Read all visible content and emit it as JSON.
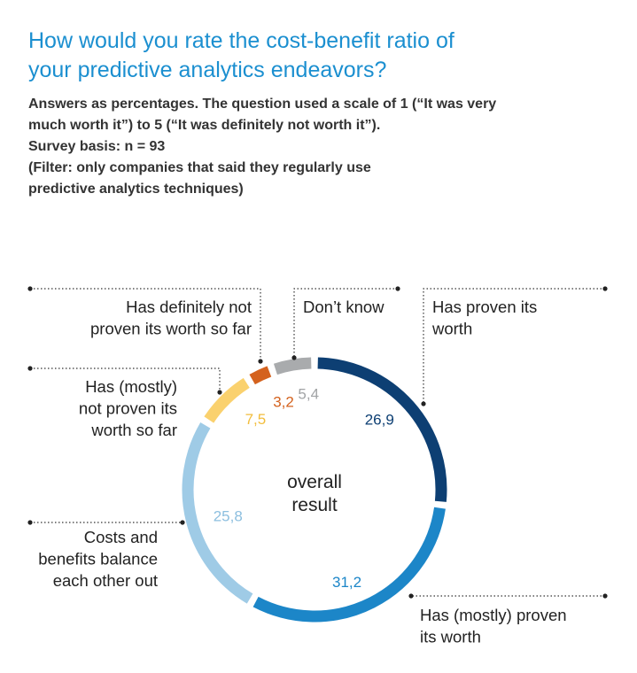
{
  "header": {
    "title_lines": [
      "How would you rate the cost-benefit ratio of",
      "your predictive analytics endeavors?"
    ],
    "subtitle_lines": [
      "Answers as percentages. The question used a scale of 1 (“It was very",
      "much worth it”) to 5 (“It was definitely not worth it”).",
      "Survey basis: n = 93",
      "(Filter: only companies that said they regularly use",
      "predictive analytics techniques)"
    ]
  },
  "chart_data": {
    "type": "pie",
    "style": "donut-ring",
    "center_label": [
      "overall",
      "result"
    ],
    "series": [
      {
        "label": [
          "Has proven its",
          "worth"
        ],
        "value": 26.9,
        "value_label": "26,9",
        "color": "#0d3f73",
        "label_color": "#0d3f73"
      },
      {
        "label": [
          "Has (mostly) proven",
          "its worth"
        ],
        "value": 31.2,
        "value_label": "31,2",
        "color": "#1c86c8",
        "label_color": "#1c86c8"
      },
      {
        "label": [
          "Costs and",
          "benefits balance",
          "each other out"
        ],
        "value": 25.8,
        "value_label": "25,8",
        "color": "#9fcbe6",
        "label_color": "#8dbfdf"
      },
      {
        "label": [
          "Has (mostly)",
          "not proven its",
          "worth so far"
        ],
        "value": 7.5,
        "value_label": "7,5",
        "color": "#fad16e",
        "label_color": "#f2bd3c"
      },
      {
        "label": [
          "Has definitely not",
          "proven its worth so far"
        ],
        "value": 3.2,
        "value_label": "3,2",
        "color": "#d4621e",
        "label_color": "#d4621e"
      },
      {
        "label": [
          "Don’t know"
        ],
        "value": 5.4,
        "value_label": "5,4",
        "color": "#a9abad",
        "label_color": "#a2a4a6"
      }
    ]
  }
}
